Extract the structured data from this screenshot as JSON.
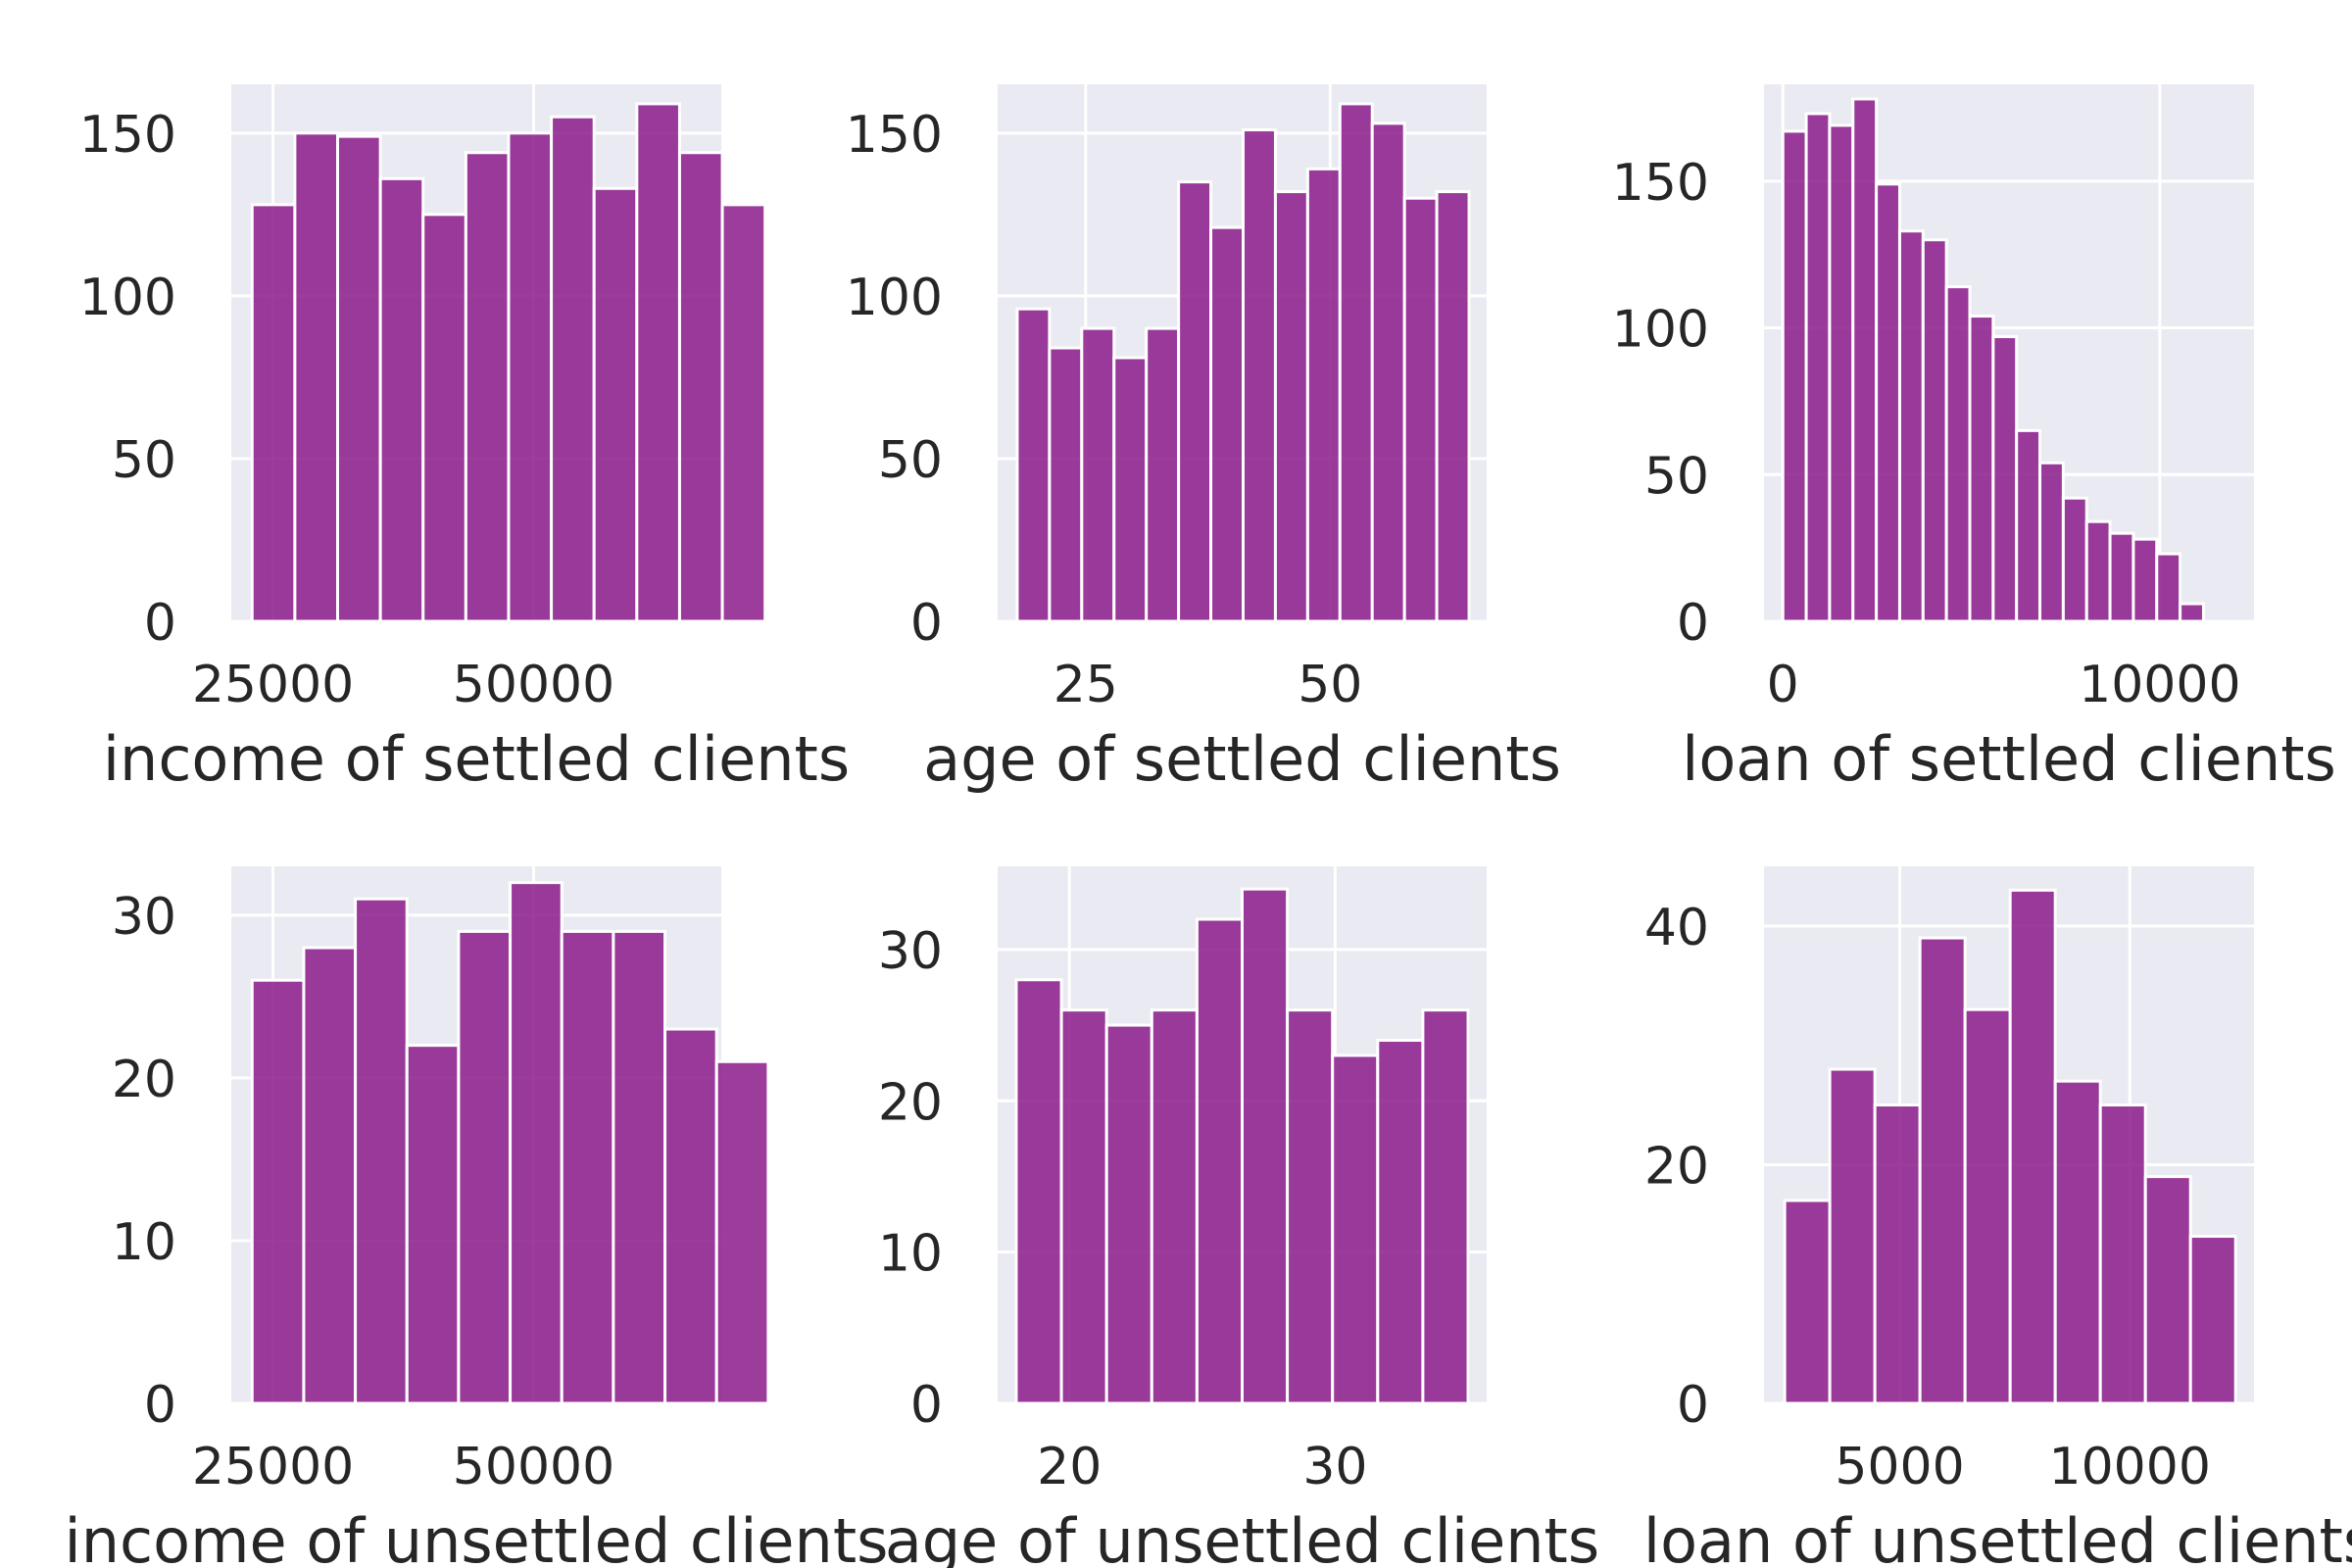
{
  "style": {
    "bar_color": "#8b1a89",
    "bar_edge": "#ffffff",
    "plot_bg": "#eaeaf2",
    "grid_color": "#ffffff",
    "text_color": "#262626"
  },
  "chart_data": [
    {
      "type": "bar",
      "xlabel": "income of settled clients",
      "x_ticks": [
        25000,
        50000
      ],
      "xlim": [
        21000,
        68000
      ],
      "y_ticks": [
        0,
        50,
        100,
        150
      ],
      "ylim": [
        0,
        165
      ],
      "bin_start": 23000,
      "bin_width": 4100,
      "values": [
        128,
        150,
        149,
        136,
        125,
        144,
        150,
        155,
        133,
        159,
        144,
        128
      ],
      "grid": true
    },
    {
      "type": "bar",
      "xlabel": "age of settled clients",
      "x_ticks": [
        25,
        50
      ],
      "xlim": [
        16,
        66
      ],
      "y_ticks": [
        0,
        50,
        100,
        150
      ],
      "ylim": [
        0,
        165
      ],
      "bin_start": 18,
      "bin_width": 3.3,
      "values": [
        96,
        84,
        90,
        81,
        90,
        135,
        121,
        151,
        132,
        139,
        159,
        153,
        130,
        132
      ],
      "grid": true
    },
    {
      "type": "bar",
      "xlabel": "loan of settled clients",
      "x_ticks": [
        0,
        10000
      ],
      "xlim": [
        -500,
        12500
      ],
      "y_ticks": [
        0,
        50,
        100,
        150
      ],
      "ylim": [
        0,
        183
      ],
      "bin_start": 0,
      "bin_width": 620,
      "values": [
        167,
        173,
        169,
        178,
        149,
        133,
        130,
        114,
        104,
        97,
        65,
        54,
        42,
        34,
        30,
        28,
        23,
        6
      ],
      "grid": true
    },
    {
      "type": "bar",
      "xlabel": "income of unsettled clients",
      "x_ticks": [
        25000,
        50000
      ],
      "xlim": [
        21000,
        68000
      ],
      "y_ticks": [
        0,
        10,
        20,
        30
      ],
      "ylim": [
        0,
        33
      ],
      "bin_start": 23000,
      "bin_width": 4950,
      "values": [
        26,
        28,
        31,
        22,
        29,
        32,
        29,
        29,
        23,
        21
      ],
      "grid": true
    },
    {
      "type": "bar",
      "xlabel": "age of unsettled clients",
      "x_ticks": [
        20,
        30
      ],
      "xlim": [
        17.3,
        35.7
      ],
      "y_ticks": [
        0,
        10,
        20,
        30
      ],
      "ylim": [
        0,
        35.5
      ],
      "bin_start": 18,
      "bin_width": 1.7,
      "values": [
        28,
        26,
        25,
        26,
        32,
        34,
        26,
        23,
        24,
        26
      ],
      "grid": true
    },
    {
      "type": "bar",
      "xlabel": "loan of unsettled clients",
      "x_ticks": [
        5000,
        10000
      ],
      "xlim": [
        2050,
        12700
      ],
      "y_ticks": [
        0,
        20,
        40
      ],
      "ylim": [
        0,
        45
      ],
      "bin_start": 2500,
      "bin_width": 980,
      "values": [
        17,
        28,
        25,
        39,
        33,
        43,
        27,
        25,
        19,
        14
      ],
      "grid": true
    }
  ]
}
